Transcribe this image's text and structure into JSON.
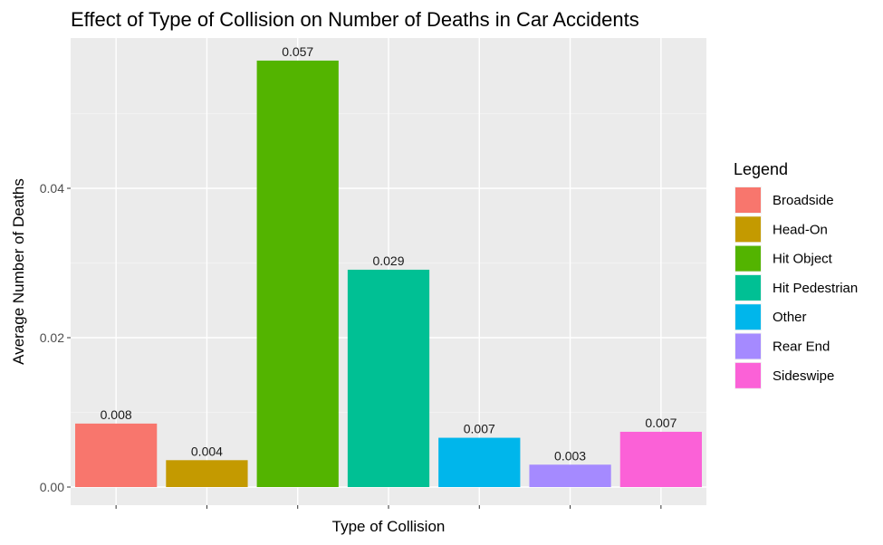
{
  "chart_data": {
    "type": "bar",
    "title": "Effect of Type of Collision on Number of Deaths in Car Accidents",
    "xlabel": "Type of Collision",
    "ylabel": "Average Number of Deaths",
    "ylim": [
      0,
      0.06
    ],
    "y_ticks": [
      0.0,
      0.02,
      0.04
    ],
    "y_tick_labels": [
      "0.00",
      "0.02",
      "0.04"
    ],
    "grid": true,
    "legend_title": "Legend",
    "legend_position": "right",
    "categories": [
      "Broadside",
      "Head-On",
      "Hit Object",
      "Hit Pedestrian",
      "Other",
      "Rear End",
      "Sideswipe"
    ],
    "values": [
      0.0085,
      0.0036,
      0.0571,
      0.0291,
      0.0066,
      0.003,
      0.0074
    ],
    "value_labels": [
      "0.008",
      "0.004",
      "0.057",
      "0.029",
      "0.007",
      "0.003",
      "0.007"
    ],
    "colors": [
      "#F8766D",
      "#C49A00",
      "#53B400",
      "#00C094",
      "#00B6EB",
      "#A58AFF",
      "#FB61D7"
    ]
  }
}
